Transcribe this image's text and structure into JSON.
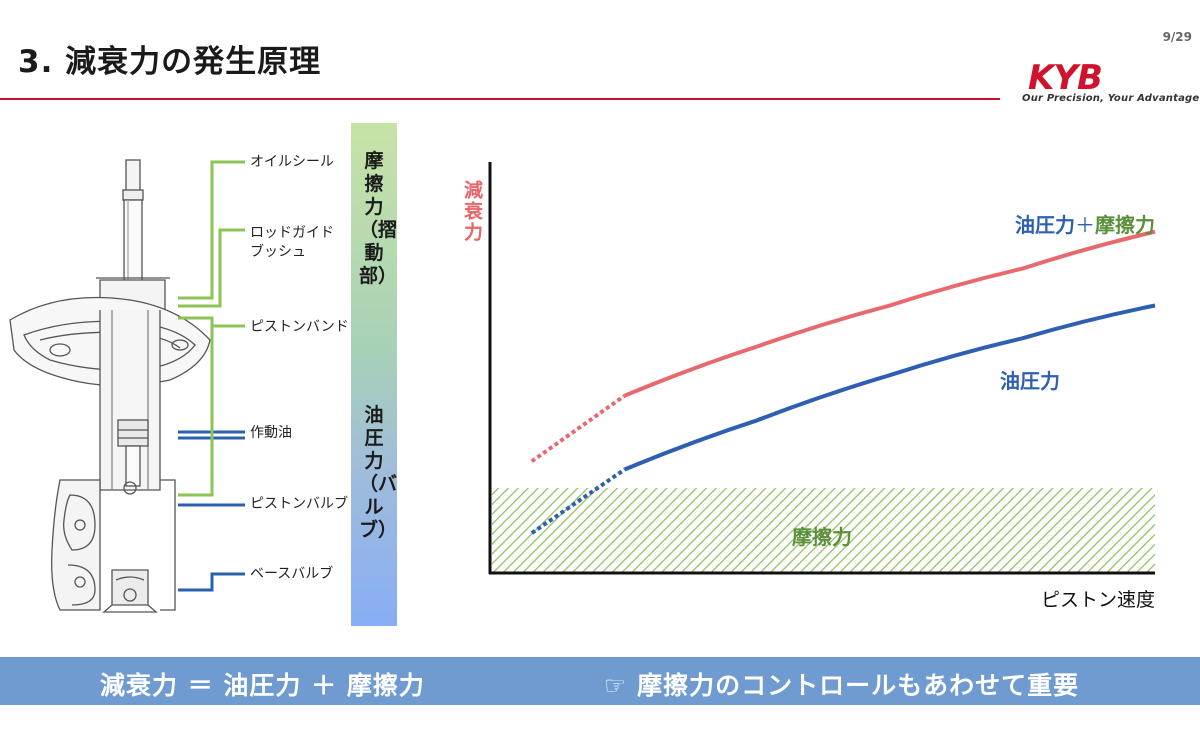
{
  "header": {
    "title": "3. 減衰力の発生原理",
    "page_number": "9/29"
  },
  "logo": {
    "brand": "KYB",
    "tagline": "Our Precision, Your Advantage",
    "brand_color": "#d0122c"
  },
  "strut_labels": {
    "oil_seal": "オイルシール",
    "rod_guide_1": "ロッドガイド",
    "rod_guide_2": "ブッシュ",
    "piston_band": "ピストンバンド",
    "working_oil": "作動油",
    "piston_valve": "ピストンバルブ",
    "base_valve": "ベースバルブ"
  },
  "vertical_bar": {
    "friction_section": "摩擦力（摺動部）",
    "hydraulic_section": "油圧力（バルブ）"
  },
  "chart_data": {
    "type": "line",
    "title": "",
    "xlabel": "ピストン速度",
    "ylabel": "減衰力",
    "xlim": [
      0,
      10
    ],
    "ylim": [
      0,
      10
    ],
    "grid": false,
    "legend": "inline",
    "series": [
      {
        "name": "油圧力＋摩擦力",
        "label_part1": "油圧力",
        "label_part2": "＋",
        "label_part3": "摩擦力",
        "color": "#e8696d",
        "dashed_until_x": 2.0,
        "x": [
          0.6,
          2.0,
          4,
          6,
          8,
          10
        ],
        "y": [
          2.7,
          4.3,
          5.5,
          6.5,
          7.4,
          8.3
        ]
      },
      {
        "name": "油圧力",
        "color": "#2f5fb3",
        "dashed_until_x": 2.0,
        "x": [
          0.6,
          2.0,
          4,
          6,
          8,
          10
        ],
        "y": [
          0.95,
          2.5,
          3.7,
          4.8,
          5.7,
          6.5
        ]
      }
    ],
    "bands": [
      {
        "name": "摩擦力",
        "y_from": 0,
        "y_to": 2.05,
        "color": "#7fb35a"
      }
    ]
  },
  "footer": {
    "formula": "減衰力  ＝  油圧力  ＋  摩擦力",
    "note": "☞  摩擦力のコントロールもあわせて重要"
  },
  "colors": {
    "accent_red": "#c8102e",
    "footer_band": "#6f9bd0",
    "green": "#8bc34a",
    "blue": "#2a60b0"
  }
}
